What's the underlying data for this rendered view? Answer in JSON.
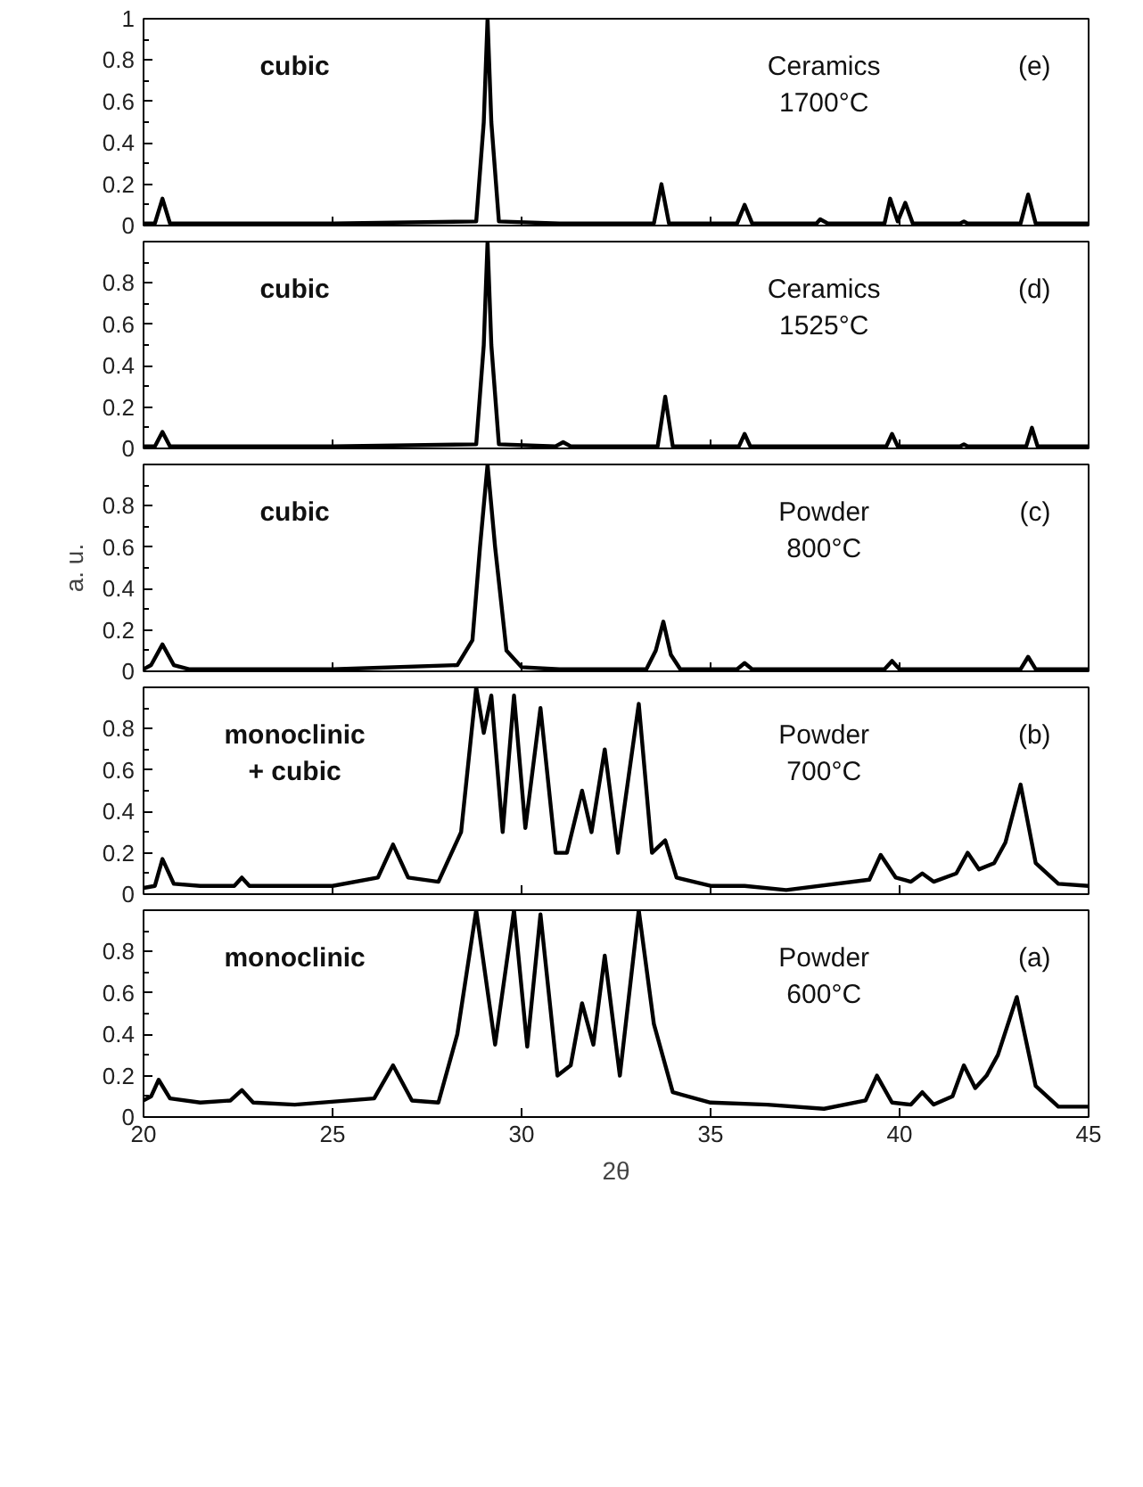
{
  "chart_data": [
    {
      "type": "line",
      "annotations": [
        "cubic",
        "Ceramics\n1700°C",
        "(e)"
      ],
      "xlim": [
        20,
        45
      ],
      "xticks": [
        20,
        25,
        30,
        35,
        40,
        45
      ],
      "ylim": [
        0,
        1
      ],
      "yticks": [
        0,
        {
          "value": 0.1,
          "label": null
        },
        0.2,
        {
          "value": 0.3,
          "label": null
        },
        0.4,
        {
          "value": 0.5,
          "label": null
        },
        0.6,
        {
          "value": 0.7,
          "label": null
        },
        0.8,
        {
          "value": 0.9,
          "label": null
        },
        1
      ],
      "tick_labels": "y",
      "grid": false,
      "series": [
        {
          "color": "#000000",
          "x": [
            20,
            20.3,
            20.5,
            20.7,
            21,
            25,
            28.8,
            29.0,
            29.1,
            29.2,
            29.4,
            31,
            33.5,
            33.7,
            33.9,
            35.7,
            35.9,
            36.1,
            37.8,
            37.9,
            38.1,
            39.6,
            39.75,
            39.95,
            40.15,
            40.35,
            41.6,
            41.7,
            41.8,
            43.2,
            43.4,
            43.6,
            45
          ],
          "values": [
            0.01,
            0.01,
            0.13,
            0.01,
            0.01,
            0.01,
            0.02,
            0.5,
            1.0,
            0.5,
            0.02,
            0.01,
            0.01,
            0.2,
            0.01,
            0.01,
            0.1,
            0.01,
            0.01,
            0.03,
            0.01,
            0.01,
            0.13,
            0.02,
            0.11,
            0.01,
            0.01,
            0.02,
            0.01,
            0.01,
            0.15,
            0.01,
            0.01
          ]
        }
      ]
    },
    {
      "type": "line",
      "annotations": [
        "cubic",
        "Ceramics\n1525°C",
        "(d)"
      ],
      "xlim": [
        20,
        45
      ],
      "xticks": [
        20,
        25,
        30,
        35,
        40,
        45
      ],
      "ylim": [
        0,
        1
      ],
      "yticks": [
        0,
        {
          "value": 0.1,
          "label": null
        },
        0.2,
        {
          "value": 0.3,
          "label": null
        },
        0.4,
        {
          "value": 0.5,
          "label": null
        },
        0.6,
        {
          "value": 0.7,
          "label": null
        },
        0.8,
        {
          "value": 0.9,
          "label": null
        }
      ],
      "tick_labels": "y",
      "grid": false,
      "series": [
        {
          "color": "#000000",
          "x": [
            20,
            20.3,
            20.5,
            20.7,
            25,
            28.8,
            29.0,
            29.1,
            29.2,
            29.4,
            30.9,
            31.1,
            31.3,
            33.6,
            33.8,
            34.0,
            35.75,
            35.9,
            36.05,
            39.65,
            39.8,
            39.95,
            41.6,
            41.7,
            41.8,
            43.35,
            43.5,
            43.65,
            45
          ],
          "values": [
            0.01,
            0.01,
            0.08,
            0.01,
            0.01,
            0.02,
            0.5,
            1.0,
            0.5,
            0.02,
            0.01,
            0.03,
            0.01,
            0.01,
            0.25,
            0.01,
            0.01,
            0.07,
            0.01,
            0.01,
            0.07,
            0.01,
            0.01,
            0.02,
            0.01,
            0.01,
            0.1,
            0.01,
            0.01
          ]
        }
      ]
    },
    {
      "type": "line",
      "ylabel": "a. u.",
      "annotations": [
        "cubic",
        "Powder\n800°C",
        "(c)"
      ],
      "xlim": [
        20,
        45
      ],
      "xticks": [
        20,
        25,
        30,
        35,
        40,
        45
      ],
      "ylim": [
        0,
        1
      ],
      "yticks": [
        0,
        {
          "value": 0.1,
          "label": null
        },
        0.2,
        {
          "value": 0.3,
          "label": null
        },
        0.4,
        {
          "value": 0.5,
          "label": null
        },
        0.6,
        {
          "value": 0.7,
          "label": null
        },
        0.8,
        {
          "value": 0.9,
          "label": null
        }
      ],
      "tick_labels": "y",
      "grid": false,
      "series": [
        {
          "color": "#000000",
          "x": [
            20,
            20.2,
            20.5,
            20.8,
            21.2,
            25,
            28.3,
            28.7,
            28.9,
            29.1,
            29.3,
            29.6,
            30,
            31,
            33.3,
            33.55,
            33.75,
            33.95,
            34.2,
            35.7,
            35.9,
            36.1,
            37.8,
            37.9,
            38.0,
            39.6,
            39.8,
            40.0,
            41.6,
            41.7,
            41.8,
            43.2,
            43.4,
            43.6,
            45
          ],
          "values": [
            0.01,
            0.03,
            0.13,
            0.03,
            0.01,
            0.01,
            0.03,
            0.15,
            0.6,
            1.0,
            0.6,
            0.1,
            0.02,
            0.01,
            0.01,
            0.1,
            0.24,
            0.08,
            0.01,
            0.01,
            0.04,
            0.01,
            0.01,
            0.01,
            0.01,
            0.01,
            0.05,
            0.01,
            0.01,
            0.01,
            0.01,
            0.01,
            0.07,
            0.01,
            0.01
          ]
        }
      ]
    },
    {
      "type": "line",
      "annotations": [
        "monoclinic\n+ cubic",
        "Powder\n700°C",
        "(b)"
      ],
      "xlim": [
        20,
        45
      ],
      "xticks": [
        20,
        25,
        30,
        35,
        40,
        45
      ],
      "ylim": [
        0,
        1
      ],
      "yticks": [
        0,
        {
          "value": 0.1,
          "label": null
        },
        0.2,
        {
          "value": 0.3,
          "label": null
        },
        0.4,
        {
          "value": 0.5,
          "label": null
        },
        0.6,
        {
          "value": 0.7,
          "label": null
        },
        0.8,
        {
          "value": 0.9,
          "label": null
        }
      ],
      "tick_labels": "y",
      "grid": false,
      "series": [
        {
          "color": "#000000",
          "x": [
            20,
            20.3,
            20.5,
            20.8,
            21.5,
            22.4,
            22.6,
            22.8,
            25,
            26.2,
            26.6,
            27.0,
            27.8,
            28.4,
            28.8,
            29.0,
            29.2,
            29.5,
            29.8,
            30.1,
            30.5,
            30.9,
            31.2,
            31.6,
            31.85,
            32.2,
            32.55,
            33.1,
            33.45,
            33.8,
            34.1,
            35,
            35.9,
            37,
            39.2,
            39.5,
            39.9,
            40.3,
            40.6,
            40.9,
            41.5,
            41.8,
            42.1,
            42.5,
            42.8,
            43.2,
            43.6,
            44.2,
            45
          ],
          "values": [
            0.03,
            0.04,
            0.17,
            0.05,
            0.04,
            0.04,
            0.08,
            0.04,
            0.04,
            0.08,
            0.24,
            0.08,
            0.06,
            0.3,
            1.0,
            0.78,
            0.96,
            0.3,
            0.96,
            0.32,
            0.9,
            0.2,
            0.2,
            0.5,
            0.3,
            0.7,
            0.2,
            0.92,
            0.2,
            0.26,
            0.08,
            0.04,
            0.04,
            0.02,
            0.07,
            0.19,
            0.08,
            0.06,
            0.1,
            0.06,
            0.1,
            0.2,
            0.12,
            0.15,
            0.25,
            0.53,
            0.15,
            0.05,
            0.04
          ]
        }
      ]
    },
    {
      "type": "line",
      "xlabel": "2θ",
      "annotations": [
        "monoclinic",
        "Powder\n600°C",
        "(a)"
      ],
      "xlim": [
        20,
        45
      ],
      "xticks": [
        20,
        25,
        30,
        35,
        40,
        45
      ],
      "ylim": [
        0,
        1
      ],
      "yticks": [
        0,
        {
          "value": 0.1,
          "label": null
        },
        0.2,
        {
          "value": 0.3,
          "label": null
        },
        0.4,
        {
          "value": 0.5,
          "label": null
        },
        0.6,
        {
          "value": 0.7,
          "label": null
        },
        0.8,
        {
          "value": 0.9,
          "label": null
        }
      ],
      "grid": false,
      "series": [
        {
          "color": "#000000",
          "x": [
            20,
            20.2,
            20.4,
            20.7,
            21.5,
            22.3,
            22.6,
            22.9,
            24,
            26.1,
            26.6,
            27.1,
            27.8,
            28.3,
            28.8,
            29.3,
            29.8,
            30.15,
            30.5,
            30.95,
            31.3,
            31.6,
            31.9,
            32.2,
            32.6,
            33.1,
            33.5,
            34,
            35,
            36.5,
            38,
            39.1,
            39.4,
            39.8,
            40.3,
            40.6,
            40.9,
            41.4,
            41.7,
            42.0,
            42.3,
            42.6,
            43.1,
            43.6,
            44.2,
            45
          ],
          "values": [
            0.08,
            0.1,
            0.18,
            0.09,
            0.07,
            0.08,
            0.13,
            0.07,
            0.06,
            0.09,
            0.25,
            0.08,
            0.07,
            0.4,
            1.0,
            0.35,
            1.0,
            0.34,
            0.98,
            0.2,
            0.25,
            0.55,
            0.35,
            0.78,
            0.2,
            1.0,
            0.45,
            0.12,
            0.07,
            0.06,
            0.04,
            0.08,
            0.2,
            0.07,
            0.06,
            0.12,
            0.06,
            0.1,
            0.25,
            0.14,
            0.2,
            0.3,
            0.58,
            0.15,
            0.05,
            0.05
          ]
        }
      ]
    }
  ]
}
